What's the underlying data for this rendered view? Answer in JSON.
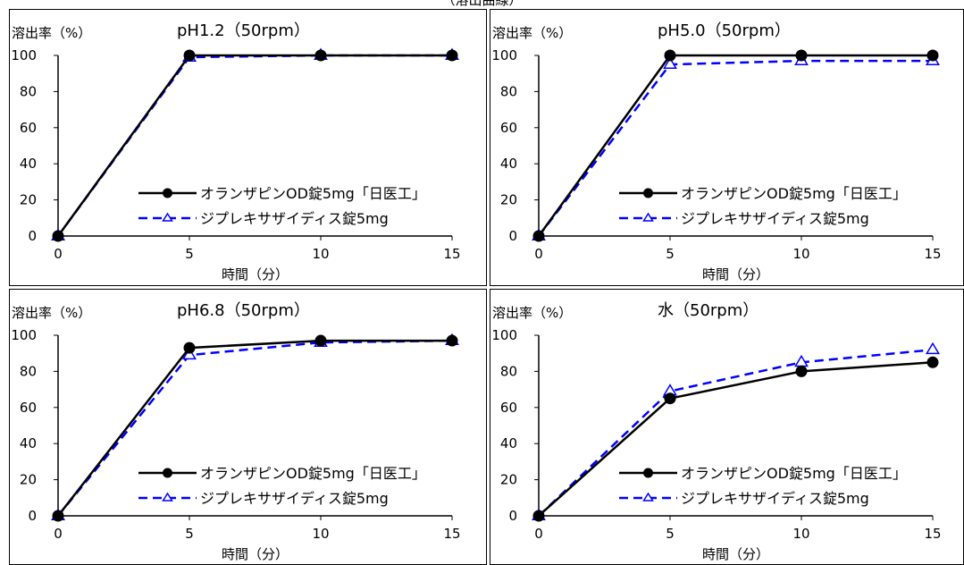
{
  "caption": "（溶出曲線）",
  "chart_data": [
    {
      "type": "line",
      "title": "pH1.2（50rpm）",
      "ylabel": "溶出率（%）",
      "xlabel": "時間（分）",
      "x": [
        0,
        5,
        10,
        15
      ],
      "xlim": [
        0,
        15
      ],
      "ylim": [
        0,
        100
      ],
      "xticks": [
        "0",
        "5",
        "10",
        "15"
      ],
      "yticks": [
        "0",
        "20",
        "40",
        "60",
        "80",
        "100"
      ],
      "grid": false,
      "legend_position": "lower-right",
      "series": [
        {
          "name": "オランザピンOD錠5mg「日医工」",
          "values": [
            0,
            100,
            100,
            100
          ],
          "color": "#000000",
          "style": "solid",
          "marker": "filled-circle"
        },
        {
          "name": "ジプレキサザイディス錠5mg",
          "values": [
            0,
            99,
            100,
            100
          ],
          "color": "#0000ff",
          "style": "dashed",
          "marker": "open-triangle"
        }
      ]
    },
    {
      "type": "line",
      "title": "pH5.0（50rpm）",
      "ylabel": "溶出率（%）",
      "xlabel": "時間（分）",
      "x": [
        0,
        5,
        10,
        15
      ],
      "xlim": [
        0,
        15
      ],
      "ylim": [
        0,
        100
      ],
      "xticks": [
        "0",
        "5",
        "10",
        "15"
      ],
      "yticks": [
        "0",
        "20",
        "40",
        "60",
        "80",
        "100"
      ],
      "grid": false,
      "legend_position": "lower-right",
      "series": [
        {
          "name": "オランザピンOD錠5mg「日医工」",
          "values": [
            0,
            100,
            100,
            100
          ],
          "color": "#000000",
          "style": "solid",
          "marker": "filled-circle"
        },
        {
          "name": "ジプレキサザイディス錠5mg",
          "values": [
            0,
            95,
            97,
            97
          ],
          "color": "#0000ff",
          "style": "dashed",
          "marker": "open-triangle"
        }
      ]
    },
    {
      "type": "line",
      "title": "pH6.8（50rpm）",
      "ylabel": "溶出率（%）",
      "xlabel": "時間（分）",
      "x": [
        0,
        5,
        10,
        15
      ],
      "xlim": [
        0,
        15
      ],
      "ylim": [
        0,
        100
      ],
      "xticks": [
        "0",
        "5",
        "10",
        "15"
      ],
      "yticks": [
        "0",
        "20",
        "40",
        "60",
        "80",
        "100"
      ],
      "grid": false,
      "legend_position": "lower-right",
      "series": [
        {
          "name": "オランザピンOD錠5mg「日医工」",
          "values": [
            0,
            93,
            97,
            97
          ],
          "color": "#000000",
          "style": "solid",
          "marker": "filled-circle"
        },
        {
          "name": "ジプレキサザイディス錠5mg",
          "values": [
            0,
            89,
            96,
            97
          ],
          "color": "#0000ff",
          "style": "dashed",
          "marker": "open-triangle"
        }
      ]
    },
    {
      "type": "line",
      "title": "水（50rpm）",
      "ylabel": "溶出率（%）",
      "xlabel": "時間（分）",
      "x": [
        0,
        5,
        10,
        15
      ],
      "xlim": [
        0,
        15
      ],
      "ylim": [
        0,
        100
      ],
      "xticks": [
        "0",
        "5",
        "10",
        "15"
      ],
      "yticks": [
        "0",
        "20",
        "40",
        "60",
        "80",
        "100"
      ],
      "grid": false,
      "legend_position": "lower-right",
      "series": [
        {
          "name": "オランザピンOD錠5mg「日医工」",
          "values": [
            0,
            65,
            80,
            85
          ],
          "color": "#000000",
          "style": "solid",
          "marker": "filled-circle"
        },
        {
          "name": "ジプレキサザイディス錠5mg",
          "values": [
            0,
            69,
            85,
            92
          ],
          "color": "#0000ff",
          "style": "dashed",
          "marker": "open-triangle"
        }
      ]
    }
  ]
}
